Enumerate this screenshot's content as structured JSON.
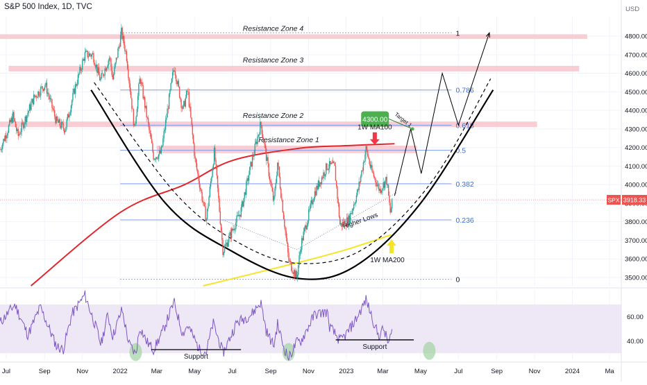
{
  "chart_data": {
    "type": "line",
    "title": "S&P 500 Index, 1D, TVC",
    "price_unit": "USD",
    "symbol": "SPX",
    "last_price": 3918.33,
    "colors": {
      "price_bull": "#26a69a",
      "price_bear": "#ef5350",
      "ma100": "#e0262d",
      "ma200": "#f5e52a",
      "fib_line": "#7f9ee6",
      "fib_text": "#3d6fd0",
      "zone_fill": "#f7c6cd",
      "rsi_line": "#7e57c2",
      "rsi_band": "#ede7f6",
      "target_box": "#4caf50",
      "arrow_red": "#f23645",
      "arrow_yellow": "#f5e52a",
      "support_circle": "#a5d6a7"
    },
    "y_axis": {
      "ticks": [
        "4800.00",
        "4700.00",
        "4600.00",
        "4500.00",
        "4400.00",
        "4300.00",
        "4200.00",
        "4100.00",
        "4000.00",
        "3900.00",
        "3800.00",
        "3700.00",
        "3600.00",
        "3500.00"
      ],
      "range": [
        3455,
        4905
      ]
    },
    "x_axis": {
      "ticks": [
        "Jul",
        "Sep",
        "Nov",
        "2022",
        "Mar",
        "May",
        "Jul",
        "Sep",
        "Nov",
        "2023",
        "Mar",
        "May",
        "Jul",
        "Sep",
        "Nov",
        "2024",
        "Ma"
      ],
      "range": [
        "2021-06-21",
        "2024-03-20"
      ]
    },
    "rsi": {
      "ticks": [
        "60.00",
        "40.00"
      ],
      "band": [
        30,
        70
      ],
      "range": [
        25,
        82
      ],
      "support_label": "Support",
      "support_lines": [
        {
          "from": "2022-02-20",
          "to": "2022-07-15",
          "value": 33
        },
        {
          "from": "2022-12-15",
          "to": "2023-04-20",
          "value": 41
        }
      ],
      "circles": [
        {
          "date": "2022-01-26",
          "value": 31
        },
        {
          "date": "2022-09-30",
          "value": 31
        },
        {
          "date": "2023-05-15",
          "value": 32
        }
      ],
      "anchors": [
        [
          "2021-06-21",
          55
        ],
        [
          "2021-07-15",
          70
        ],
        [
          "2021-08-05",
          45
        ],
        [
          "2021-08-25",
          68
        ],
        [
          "2021-09-20",
          36
        ],
        [
          "2021-10-01",
          33
        ],
        [
          "2021-10-15",
          62
        ],
        [
          "2021-11-05",
          78
        ],
        [
          "2021-11-25",
          48
        ],
        [
          "2021-12-01",
          37
        ],
        [
          "2021-12-12",
          62
        ],
        [
          "2021-12-20",
          44
        ],
        [
          "2022-01-04",
          66
        ],
        [
          "2022-01-15",
          38
        ],
        [
          "2022-01-26",
          29
        ],
        [
          "2022-02-02",
          52
        ],
        [
          "2022-02-12",
          40
        ],
        [
          "2022-02-24",
          33
        ],
        [
          "2022-03-10",
          47
        ],
        [
          "2022-03-29",
          72
        ],
        [
          "2022-04-12",
          46
        ],
        [
          "2022-04-20",
          53
        ],
        [
          "2022-05-09",
          33
        ],
        [
          "2022-05-20",
          31
        ],
        [
          "2022-05-31",
          55
        ],
        [
          "2022-06-16",
          30
        ],
        [
          "2022-07-08",
          55
        ],
        [
          "2022-08-01",
          62
        ],
        [
          "2022-08-16",
          72
        ],
        [
          "2022-08-25",
          48
        ],
        [
          "2022-09-06",
          36
        ],
        [
          "2022-09-12",
          54
        ],
        [
          "2022-09-22",
          35
        ],
        [
          "2022-09-30",
          26
        ],
        [
          "2022-10-13",
          39
        ],
        [
          "2022-10-20",
          40
        ],
        [
          "2022-11-01",
          52
        ],
        [
          "2022-11-11",
          62
        ],
        [
          "2022-12-01",
          64
        ],
        [
          "2022-12-05",
          52
        ],
        [
          "2022-12-22",
          40
        ],
        [
          "2023-01-03",
          47
        ],
        [
          "2023-01-18",
          59
        ],
        [
          "2023-02-02",
          74
        ],
        [
          "2023-02-10",
          62
        ],
        [
          "2023-02-22",
          44
        ],
        [
          "2023-03-02",
          50
        ],
        [
          "2023-03-10",
          38
        ],
        [
          "2023-03-17",
          49
        ]
      ]
    },
    "price_series": {
      "name": "SPX",
      "anchors": [
        [
          "2021-06-21",
          4190
        ],
        [
          "2021-07-12",
          4370
        ],
        [
          "2021-07-20",
          4260
        ],
        [
          "2021-08-15",
          4470
        ],
        [
          "2021-09-02",
          4540
        ],
        [
          "2021-09-20",
          4340
        ],
        [
          "2021-10-04",
          4300
        ],
        [
          "2021-10-20",
          4520
        ],
        [
          "2021-11-05",
          4700
        ],
        [
          "2021-11-18",
          4700
        ],
        [
          "2021-11-30",
          4560
        ],
        [
          "2021-12-15",
          4690
        ],
        [
          "2021-12-20",
          4570
        ],
        [
          "2022-01-03",
          4820
        ],
        [
          "2022-01-11",
          4700
        ],
        [
          "2022-01-24",
          4300
        ],
        [
          "2022-02-02",
          4580
        ],
        [
          "2022-02-24",
          4150
        ],
        [
          "2022-03-08",
          4170
        ],
        [
          "2022-03-29",
          4640
        ],
        [
          "2022-04-12",
          4400
        ],
        [
          "2022-04-20",
          4510
        ],
        [
          "2022-05-02",
          4130
        ],
        [
          "2022-05-20",
          3810
        ],
        [
          "2022-06-02",
          4180
        ],
        [
          "2022-06-16",
          3640
        ],
        [
          "2022-07-15",
          3860
        ],
        [
          "2022-08-01",
          4120
        ],
        [
          "2022-08-16",
          4330
        ],
        [
          "2022-09-06",
          3900
        ],
        [
          "2022-09-12",
          4120
        ],
        [
          "2022-09-30",
          3590
        ],
        [
          "2022-10-13",
          3500
        ],
        [
          "2022-10-20",
          3680
        ],
        [
          "2022-11-10",
          3950
        ],
        [
          "2022-12-01",
          4100
        ],
        [
          "2022-12-13",
          4100
        ],
        [
          "2022-12-22",
          3780
        ],
        [
          "2023-01-05",
          3810
        ],
        [
          "2023-01-20",
          3970
        ],
        [
          "2023-02-02",
          4195
        ],
        [
          "2023-02-10",
          4080
        ],
        [
          "2023-02-24",
          3970
        ],
        [
          "2023-03-07",
          4030
        ],
        [
          "2023-03-13",
          3850
        ],
        [
          "2023-03-17",
          3918
        ]
      ]
    },
    "ma_series": [
      {
        "name": "1W MA100",
        "points": [
          [
            "2021-08-10",
            3455
          ],
          [
            "2022-01-01",
            3850
          ],
          [
            "2022-04-15",
            4000
          ],
          [
            "2022-07-01",
            4130
          ],
          [
            "2022-10-15",
            4195
          ],
          [
            "2023-01-01",
            4210
          ],
          [
            "2023-03-20",
            4220
          ]
        ]
      },
      {
        "name": "1W MA200",
        "points": [
          [
            "2022-05-15",
            3455
          ],
          [
            "2022-10-15",
            3580
          ],
          [
            "2023-01-01",
            3650
          ],
          [
            "2023-03-15",
            3730
          ]
        ]
      }
    ],
    "resistance_zones": [
      {
        "label": "Resistance Zone 4",
        "low": 4785,
        "high": 4810,
        "from": "2021-06-21",
        "to": "2024-01-25"
      },
      {
        "label": "Resistance Zone 3",
        "low": 4610,
        "high": 4640,
        "from": "2021-07-05",
        "to": "2024-01-12"
      },
      {
        "label": "Resistance Zone 2",
        "low": 4310,
        "high": 4340,
        "from": "2021-06-21",
        "to": "2023-11-05"
      },
      {
        "label": "Resistance Zone 1",
        "low": 4170,
        "high": 4210,
        "from": "2022-03-01",
        "to": "2023-04-25"
      }
    ],
    "fibonacci": [
      {
        "label": "1",
        "value": 4818
      },
      {
        "label": "0.786",
        "value": 4510
      },
      {
        "label": "0.618",
        "value": 4320
      },
      {
        "label": "0.5",
        "value": 4185
      },
      {
        "label": "0.382",
        "value": 4005
      },
      {
        "label": "0.236",
        "value": 3810
      },
      {
        "label": "0",
        "value": 3490
      }
    ],
    "fib_range": [
      "2022-01-01",
      "2023-06-20"
    ],
    "annotations": {
      "target_value": "4300.00",
      "target_label": "Target 1",
      "ma100_label": "1W MA100",
      "ma200_label": "1W MA200",
      "higher_lows_label": "Higher Lows"
    },
    "cup_solid": [
      [
        "2021-11-15",
        4510
      ],
      [
        "2022-03-15",
        3900
      ],
      [
        "2022-07-01",
        3640
      ],
      [
        "2022-10-15",
        3495
      ],
      [
        "2023-01-15",
        3560
      ],
      [
        "2023-05-01",
        3900
      ],
      [
        "2023-08-26",
        4510
      ]
    ],
    "cup_dashed": [
      [
        "2021-11-20",
        4550
      ],
      [
        "2022-04-01",
        3950
      ],
      [
        "2022-07-15",
        3680
      ],
      [
        "2022-10-20",
        3575
      ],
      [
        "2023-02-01",
        3660
      ],
      [
        "2023-05-20",
        4020
      ],
      [
        "2023-08-22",
        4570
      ]
    ],
    "higher_lows_line": [
      [
        "2022-06-16",
        3810
      ],
      [
        "2022-10-13",
        3650
      ],
      [
        "2023-03-25",
        3960
      ]
    ],
    "projection_path": [
      [
        "2023-03-20",
        3940
      ],
      [
        "2023-04-15",
        4300
      ],
      [
        "2023-05-02",
        4060
      ],
      [
        "2023-06-05",
        4600
      ],
      [
        "2023-07-01",
        4320
      ],
      [
        "2023-08-20",
        4818
      ]
    ]
  }
}
